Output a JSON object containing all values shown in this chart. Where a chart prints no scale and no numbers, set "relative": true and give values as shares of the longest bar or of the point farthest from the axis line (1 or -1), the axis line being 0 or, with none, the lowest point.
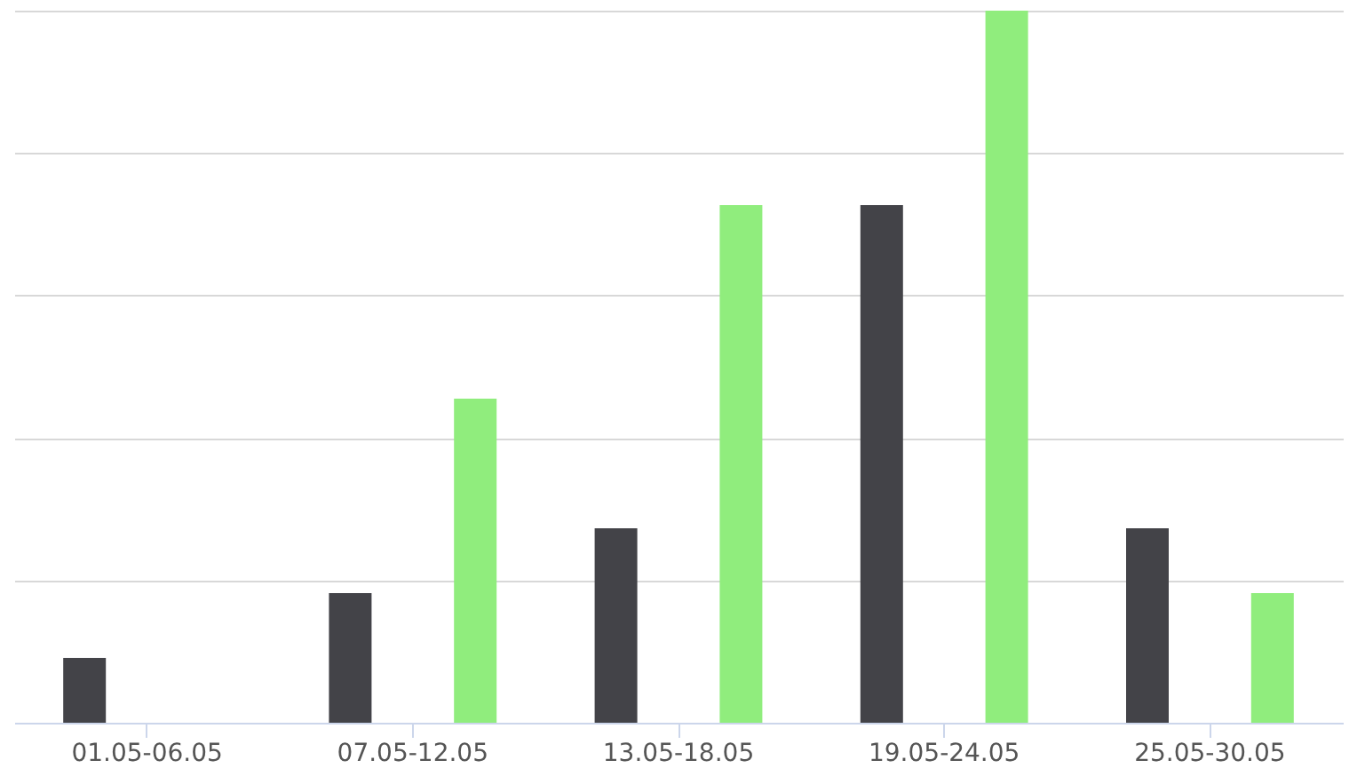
{
  "chart_data": {
    "type": "bar",
    "relative": true,
    "grid": "y",
    "categories": [
      "01.05-06.05",
      "07.05-12.05",
      "13.05-18.05",
      "19.05-24.05",
      "25.05-30.05"
    ],
    "series": [
      {
        "color": "#434348",
        "values": [
          0.091,
          0.182,
          0.273,
          0.727,
          0.273
        ]
      },
      {
        "color": "#90ed7d",
        "values": [
          0,
          0.455,
          0.727,
          1,
          0.182
        ]
      }
    ]
  }
}
